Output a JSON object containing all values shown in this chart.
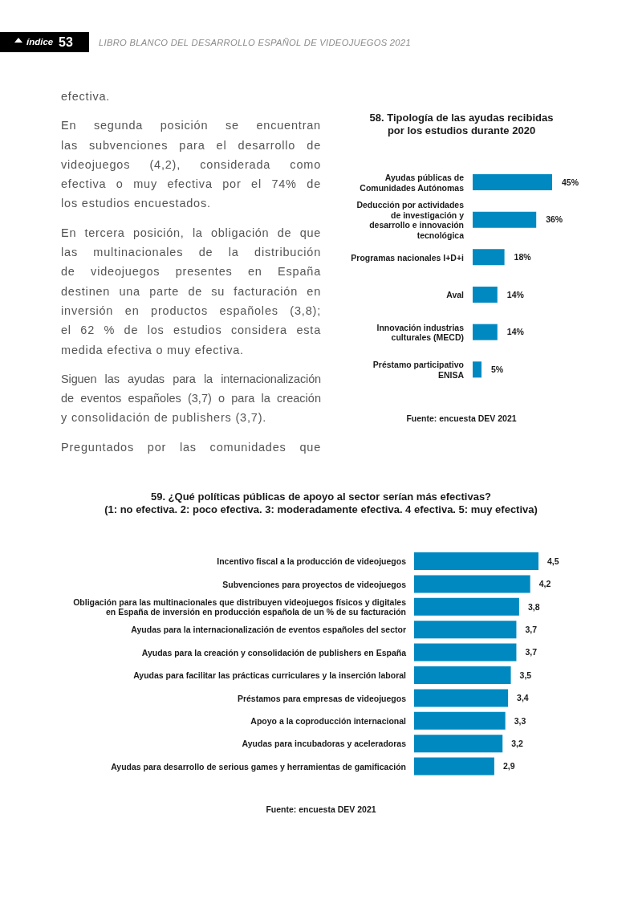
{
  "chart_data": [
    {
      "type": "other",
      "annotations": [
        "índice",
        "53",
        "LIBRO BLANCO DEL DESARROLLO ESPAÑOL DE VIDEOJUEGOS 2021"
      ]
    },
    {
      "type": "other",
      "annotations": [
        "efectiva.",
        "En segunda posición se encuentran\nlas subvenciones para el desarrollo de\nvideojuegos (4,2), considerada como\nefectiva o muy efectiva por el 74% de\nlos estudios encuestados.",
        "En tercera posición, la obligación de que\nlas multinacionales de la distribución\nde videojuegos presentes en España\ndestinen una parte de su facturación en\ninversión en productos españoles (3,8);\nel 62 % de los estudios considera esta\nmedida efectiva o muy efectiva.",
        "Siguen las ayudas para la internacionalización\nde eventos españoles (3,7) o para la creación\ny consolidación de publishers (3,7).",
        "Preguntados por las comunidades que"
      ]
    },
    {
      "type": "bar",
      "orientation": "horizontal",
      "title": "58. Tipología de las ayudas recibidas\npor los estudios durante 2020",
      "categories": [
        "Ayudas públicas de\nComunidades Autónomas",
        "Deducción por actividades\nde investigación y\ndesarrollo e innovación\ntecnológica",
        "Programas nacionales I+D+i",
        "Aval",
        "Innovación industrias\nculturales (MECD)",
        "Préstamo participativo\nENISA"
      ],
      "values": [
        45,
        36,
        18,
        14,
        14,
        5
      ],
      "value_labels": [
        "45%",
        "36%",
        "18%",
        "14%",
        "14%",
        "5%"
      ],
      "color": "#0089c1",
      "annotations": [
        "Fuente: encuesta DEV 2021"
      ]
    },
    {
      "type": "bar",
      "orientation": "horizontal",
      "title": "59. ¿Qué políticas públicas de apoyo al sector serían más efectivas?\n(1: no efectiva. 2: poco efectiva. 3: moderadamente efectiva. 4 efectiva. 5: muy efectiva)",
      "categories": [
        "Incentivo fiscal a la producción de videojuegos",
        "Subvenciones para proyectos de videojuegos",
        "Obligación para las multinacionales que distribuyen videojuegos físicos y digitales\nen España de inversión en producción española de un % de su facturación",
        "Ayudas para la internacionalización de eventos españoles del sector",
        "Ayudas para la creación y consolidación de publishers en España",
        "Ayudas para facilitar las prácticas curriculares y la inserción laboral",
        "Préstamos para empresas de videojuegos",
        "Apoyo a la coproducción internacional",
        "Ayudas para incubadoras y aceleradoras",
        "Ayudas para desarrollo de serious games y herramientas de gamificación"
      ],
      "values": [
        4.5,
        4.2,
        3.8,
        3.7,
        3.7,
        3.5,
        3.4,
        3.3,
        3.2,
        2.9
      ],
      "value_labels": [
        "4,5",
        "4,2",
        "3,8",
        "3,7",
        "3,7",
        "3,5",
        "3,4",
        "3,3",
        "3,2",
        "2,9"
      ],
      "color": "#0089c1",
      "annotations": [
        "Fuente: encuesta DEV 2021"
      ]
    }
  ]
}
